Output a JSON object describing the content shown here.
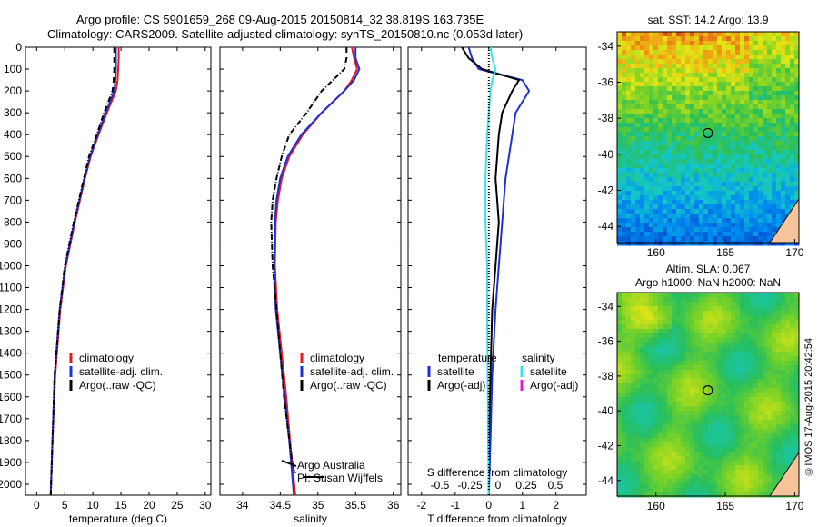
{
  "title": {
    "line1": "Argo profile: CS 5901659_268 09-Aug-2015 20150814_32 38.819S 163.735E",
    "line2": "Climatology: CARS2009. Satellite-adjusted climatology: synTS_20150810.nc (0.053d later)"
  },
  "side_label": "©IMOS 17-Aug-2015 20:42:54",
  "colors": {
    "clim": "#e41a1c",
    "sat": "#1f2fd6",
    "argo": "#000000",
    "cyan": "#33e6ee",
    "magenta": "#e01ad8"
  },
  "chart_data": [
    {
      "type": "line",
      "name": "temperature",
      "xlabel": "temperature (deg C)",
      "xlim": [
        -2,
        31
      ],
      "xticks": [
        0,
        5,
        10,
        15,
        20,
        25,
        30
      ],
      "ylim": [
        2050,
        0
      ],
      "yticks": [
        0,
        100,
        200,
        300,
        400,
        500,
        600,
        700,
        800,
        900,
        1000,
        1100,
        1200,
        1300,
        1400,
        1500,
        1600,
        1700,
        1800,
        1900,
        2000
      ],
      "legend": [
        "climatology",
        "satellite-adj. clim.",
        "Argo(..raw -QC)"
      ],
      "series": [
        {
          "name": "climatology",
          "depth": [
            0,
            50,
            100,
            150,
            200,
            300,
            400,
            500,
            600,
            800,
            1000,
            1200,
            1500,
            1800,
            2050
          ],
          "values": [
            14.6,
            14.6,
            14.5,
            14.4,
            14.1,
            12.5,
            11.0,
            9.6,
            8.6,
            6.8,
            5.2,
            4.2,
            3.3,
            2.8,
            2.5
          ]
        },
        {
          "name": "satellite-adj. clim.",
          "depth": [
            0,
            50,
            100,
            150,
            200,
            300,
            400,
            500,
            600,
            800,
            1000,
            1200,
            1500,
            1800,
            2050
          ],
          "values": [
            14.1,
            14.1,
            14.1,
            14.0,
            13.8,
            12.3,
            10.9,
            9.5,
            8.5,
            6.7,
            5.1,
            4.1,
            3.2,
            2.8,
            2.5
          ]
        },
        {
          "name": "Argo(..raw -QC)",
          "depth": [
            0,
            50,
            100,
            150,
            200,
            300,
            400,
            500,
            600,
            800,
            1000,
            1200,
            1500,
            1800,
            2050
          ],
          "values": [
            13.8,
            13.8,
            13.8,
            13.7,
            13.5,
            12.0,
            10.7,
            9.3,
            8.4,
            6.6,
            5.0,
            4.1,
            3.2,
            2.8,
            2.5
          ]
        }
      ]
    },
    {
      "type": "line",
      "name": "salinity",
      "xlabel": "salinity",
      "xlim": [
        33.7,
        36.1
      ],
      "xticks": [
        34,
        34.5,
        35,
        35.5,
        36
      ],
      "ylim": [
        2050,
        0
      ],
      "legend": [
        "climatology",
        "satellite-adj. clim.",
        "Argo(..raw -QC)"
      ],
      "annotation": [
        "Argo Australia",
        "PI: Susan Wijffels"
      ],
      "series": [
        {
          "name": "climatology",
          "depth": [
            0,
            50,
            100,
            150,
            200,
            300,
            400,
            500,
            600,
            700,
            800,
            1000,
            1200,
            1400,
            1600,
            1800,
            2050
          ],
          "values": [
            35.45,
            35.48,
            35.52,
            35.45,
            35.35,
            35.05,
            34.8,
            34.62,
            34.52,
            34.47,
            34.44,
            34.43,
            34.46,
            34.52,
            34.58,
            34.63,
            34.7
          ]
        },
        {
          "name": "satellite-adj. clim.",
          "depth": [
            0,
            50,
            100,
            150,
            200,
            300,
            400,
            500,
            600,
            700,
            800,
            1000,
            1200,
            1400,
            1600,
            1800,
            2050
          ],
          "values": [
            35.5,
            35.5,
            35.55,
            35.48,
            35.35,
            35.05,
            34.78,
            34.6,
            34.5,
            34.45,
            34.43,
            34.42,
            34.44,
            34.5,
            34.56,
            34.62,
            34.68
          ]
        },
        {
          "name": "Argo(..raw -QC)",
          "depth": [
            0,
            50,
            100,
            150,
            200,
            300,
            400,
            500,
            600,
            700,
            800,
            1000,
            1200,
            1400,
            1600,
            1800,
            1900,
            1950
          ],
          "values": [
            35.38,
            35.38,
            35.35,
            35.2,
            35.05,
            34.85,
            34.62,
            34.52,
            34.45,
            34.4,
            34.38,
            34.4,
            34.45,
            34.5,
            34.55,
            34.62,
            34.66,
            34.7
          ]
        }
      ]
    },
    {
      "type": "line",
      "name": "difference",
      "xlabel": "T difference from climatology",
      "xlabel_top": "S difference from climatology",
      "xlim": [
        -2.4,
        2.9
      ],
      "xticks": [
        -2,
        -1,
        0,
        1,
        2
      ],
      "xticklabels_top": [
        "-0.5",
        "-0.25",
        "0",
        "0.25",
        "0.5"
      ],
      "ylim": [
        2050,
        0
      ],
      "legend_headers": [
        "temperature",
        "salinity"
      ],
      "legend": [
        "satellite",
        "Argo(-adj)",
        "satellite",
        "Argo(-adj)"
      ],
      "series": [
        {
          "name": "temperature satellite",
          "depth": [
            0,
            50,
            100,
            150,
            200,
            300,
            400,
            600,
            800,
            1000,
            1200,
            1500,
            1800,
            2050
          ],
          "values": [
            -0.6,
            -0.5,
            -0.3,
            1.0,
            1.2,
            0.8,
            0.7,
            0.5,
            0.4,
            0.3,
            0.2,
            0.1,
            0.05,
            0.0
          ]
        },
        {
          "name": "temperature Argo(-adj)",
          "depth": [
            0,
            50,
            100,
            150,
            200,
            300,
            400,
            600,
            800,
            1000,
            1200,
            1500,
            1800,
            2050
          ],
          "values": [
            -0.8,
            -0.6,
            -0.2,
            0.9,
            0.7,
            0.4,
            0.3,
            0.2,
            0.3,
            0.2,
            0.1,
            0.05,
            0.0,
            0.0
          ]
        },
        {
          "name": "salinity satellite",
          "depth": [
            0,
            50,
            100,
            150,
            200,
            300,
            400,
            600,
            800,
            1000,
            1200,
            1500,
            1800,
            2050
          ],
          "values": [
            0.05,
            0.1,
            0.2,
            0.1,
            0.05,
            0.0,
            -0.05,
            -0.1,
            -0.1,
            -0.05,
            -0.05,
            -0.03,
            -0.02,
            0.0
          ]
        },
        {
          "name": "salinity Argo(-adj)",
          "depth": [
            0,
            100,
            200,
            400,
            600,
            800,
            1000,
            1200,
            1500,
            1800,
            2050
          ],
          "values": [
            0.0,
            0.0,
            0.0,
            0.0,
            0.0,
            0.0,
            0.0,
            0.0,
            0.0,
            0.0,
            0.0
          ]
        }
      ]
    },
    {
      "type": "heatmap",
      "name": "sst_map",
      "title": "sat. SST: 14.2  Argo: 13.9",
      "xticks": [
        160,
        165,
        170
      ],
      "yticks": [
        -34,
        -36,
        -38,
        -40,
        -42,
        -44
      ],
      "xlim": [
        157.2,
        170.3
      ],
      "ylim": [
        -44.9,
        -33.2
      ],
      "argo_position": {
        "lon": 163.735,
        "lat": -38.819
      }
    },
    {
      "type": "heatmap",
      "name": "sla_map",
      "title_line1": "Altim. SLA: 0.067",
      "title_line2": "Argo h1000: NaN  h2000: NaN",
      "xticks": [
        160,
        165,
        170
      ],
      "yticks": [
        -34,
        -36,
        -38,
        -40,
        -42,
        -44
      ],
      "xlim": [
        157.2,
        170.3
      ],
      "ylim": [
        -44.9,
        -33.2
      ],
      "argo_position": {
        "lon": 163.735,
        "lat": -38.819
      }
    }
  ]
}
